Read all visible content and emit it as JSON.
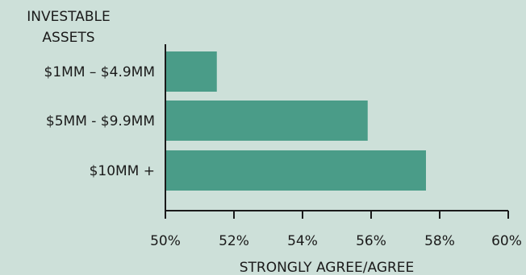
{
  "chart_data": {
    "type": "bar",
    "orientation": "horizontal",
    "title": "",
    "category_axis_title": [
      "INVESTABLE",
      "ASSETS"
    ],
    "categories": [
      "$1MM – $4.9MM",
      "$5MM - $9.9MM",
      "$10MM +"
    ],
    "series": [
      {
        "values": [
          51.5,
          55.9,
          57.6
        ]
      }
    ],
    "xlabel": "STRONGLY AGREE/AGREE",
    "xlim": [
      50,
      60
    ],
    "xticks": [
      "50%",
      "52%",
      "54%",
      "56%",
      "58%",
      "60%"
    ],
    "xtick_values": [
      50,
      52,
      54,
      56,
      58,
      60
    ],
    "grid": false,
    "colors": {
      "bar": "#4a9c88",
      "background": "#cde0d9",
      "axis": "#1a1a1a",
      "text": "#1a1a1a"
    }
  }
}
